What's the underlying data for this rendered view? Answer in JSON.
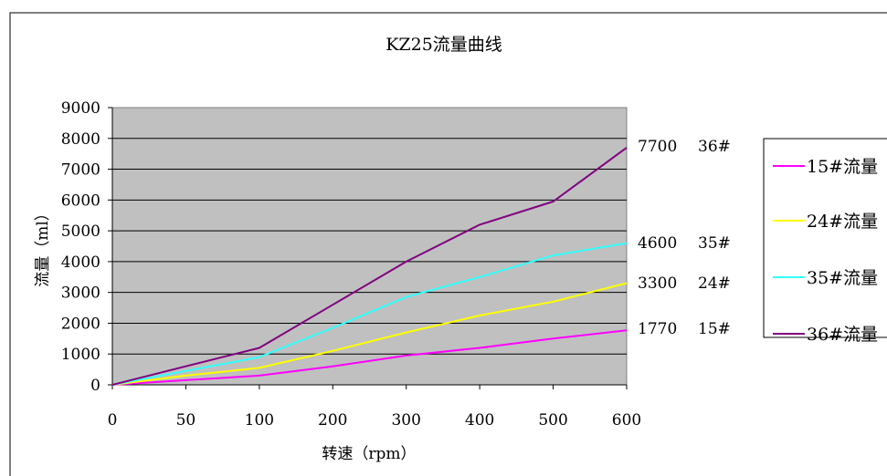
{
  "chart_data": {
    "type": "line",
    "title": "KZ25流量曲线",
    "xlabel": "转速（rpm）",
    "ylabel": "流量（ml）",
    "categories": [
      "0",
      "50",
      "100",
      "200",
      "300",
      "400",
      "500",
      "600"
    ],
    "ylim": [
      0,
      9000
    ],
    "yticks": [
      "0",
      "1000",
      "2000",
      "3000",
      "4000",
      "5000",
      "6000",
      "7000",
      "8000",
      "9000"
    ],
    "grid": true,
    "legend_position": "right",
    "series": [
      {
        "name": "15#流量",
        "color": "#ff00ff",
        "values": [
          0,
          150,
          300,
          600,
          950,
          1200,
          1500,
          1770
        ]
      },
      {
        "name": "24#流量",
        "color": "#ffff00",
        "values": [
          0,
          300,
          550,
          1100,
          1700,
          2250,
          2700,
          3300
        ]
      },
      {
        "name": "35#流量",
        "color": "#33ffff",
        "values": [
          0,
          450,
          900,
          1850,
          2850,
          3500,
          4200,
          4600
        ]
      },
      {
        "name": "36#流量",
        "color": "#800080",
        "values": [
          0,
          600,
          1200,
          2600,
          4000,
          5200,
          5950,
          7700
        ]
      }
    ],
    "annotations": [
      {
        "value": "7700",
        "label": "36#"
      },
      {
        "value": "4600",
        "label": "35#"
      },
      {
        "value": "3300",
        "label": "24#"
      },
      {
        "value": "1770",
        "label": "15#"
      }
    ]
  }
}
